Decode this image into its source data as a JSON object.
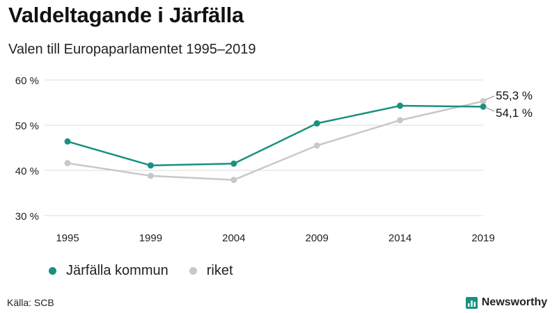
{
  "header": {
    "title": "Valdeltagande i Järfälla",
    "subtitle": "Valen till Europaparlamentet 1995–2019"
  },
  "footer": {
    "source": "Källa: SCB",
    "brand": "Newsworthy",
    "brand_icon": "bar-chart-logo-icon"
  },
  "colors": {
    "kommun": "#1a9080",
    "riket": "#c8c8c8",
    "grid": "#dcdcdc",
    "brand": "#1a9080"
  },
  "chart_data": {
    "type": "line",
    "title": "Valdeltagande i Järfälla",
    "subtitle": "Valen till Europaparlamentet 1995–2019",
    "x": [
      "1995",
      "1999",
      "2004",
      "2009",
      "2014",
      "2019"
    ],
    "ylim": [
      30,
      60
    ],
    "yticks": [
      30,
      40,
      50,
      60
    ],
    "ytick_labels": [
      "30 %",
      "40 %",
      "50 %",
      "60 %"
    ],
    "grid": true,
    "legend_position": "bottom",
    "series": [
      {
        "name": "Järfälla kommun",
        "values": [
          46.4,
          41.1,
          41.5,
          50.4,
          54.3,
          54.1
        ],
        "color": "#1a9080",
        "end_label": "54,1 %"
      },
      {
        "name": "riket",
        "values": [
          41.6,
          38.8,
          37.9,
          45.5,
          51.1,
          55.3
        ],
        "color": "#c8c8c8",
        "end_label": "55,3 %"
      }
    ]
  }
}
